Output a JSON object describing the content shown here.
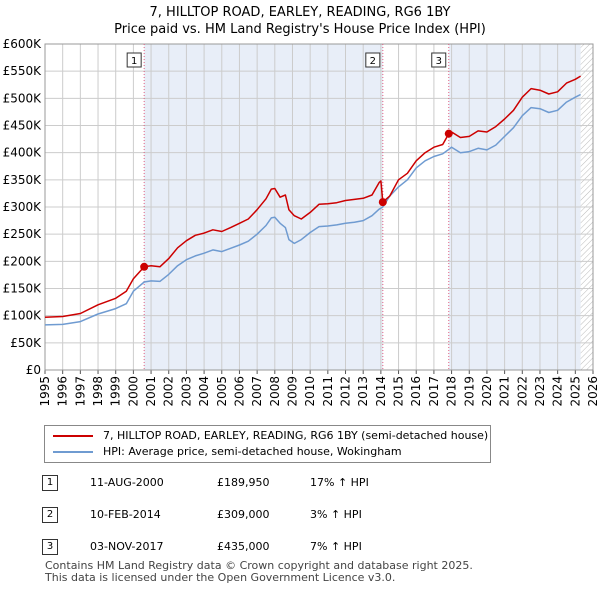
{
  "chart_data": {
    "type": "line",
    "title": "7, HILLTOP ROAD, EARLEY, READING, RG6 1BY",
    "subtitle": "Price paid vs. HM Land Registry's House Price Index (HPI)",
    "ylim": [
      0,
      600000
    ],
    "xlim": [
      1995,
      2026
    ],
    "y_ticks": [
      0,
      50000,
      100000,
      150000,
      200000,
      250000,
      300000,
      350000,
      400000,
      450000,
      500000,
      550000,
      600000
    ],
    "y_tick_labels": [
      "£0",
      "£50K",
      "£100K",
      "£150K",
      "£200K",
      "£250K",
      "£300K",
      "£350K",
      "£400K",
      "£450K",
      "£500K",
      "£550K",
      "£600K"
    ],
    "x_ticks": [
      1995,
      1996,
      1997,
      1998,
      1999,
      2000,
      2001,
      2002,
      2003,
      2004,
      2005,
      2006,
      2007,
      2008,
      2009,
      2010,
      2011,
      2012,
      2013,
      2014,
      2015,
      2016,
      2017,
      2018,
      2019,
      2020,
      2021,
      2022,
      2023,
      2024,
      2025,
      2026
    ],
    "x_tick_labels": [
      "1995",
      "1996",
      "1997",
      "1998",
      "1999",
      "2000",
      "2001",
      "2002",
      "2003",
      "2004",
      "2005",
      "2006",
      "2007",
      "2008",
      "2009",
      "2010",
      "2011",
      "2012",
      "2013",
      "2014",
      "2015",
      "2016",
      "2017",
      "2018",
      "2019",
      "2020",
      "2021",
      "2022",
      "2023",
      "2024",
      "2025",
      "2026"
    ],
    "grid": true,
    "shaded_periods": [
      [
        2000.61,
        2014.11
      ],
      [
        2017.84,
        2025.3
      ]
    ],
    "hatched_after": 2025.3,
    "series": [
      {
        "name": "7, HILLTOP ROAD, EARLEY, READING, RG6 1BY (semi-detached house)",
        "color": "#cc0000",
        "points": [
          [
            1995.0,
            97000
          ],
          [
            1996.0,
            98500
          ],
          [
            1997.0,
            104000
          ],
          [
            1998.0,
            120000
          ],
          [
            1999.0,
            132000
          ],
          [
            1999.6,
            145000
          ],
          [
            2000.0,
            168000
          ],
          [
            2000.61,
            189950
          ],
          [
            2001.0,
            192000
          ],
          [
            2001.5,
            190000
          ],
          [
            2002.0,
            205000
          ],
          [
            2002.5,
            225000
          ],
          [
            2003.0,
            238000
          ],
          [
            2003.5,
            248000
          ],
          [
            2004.0,
            252000
          ],
          [
            2004.5,
            258000
          ],
          [
            2005.0,
            255000
          ],
          [
            2005.5,
            262000
          ],
          [
            2006.0,
            270000
          ],
          [
            2006.5,
            278000
          ],
          [
            2007.0,
            295000
          ],
          [
            2007.5,
            315000
          ],
          [
            2007.8,
            333000
          ],
          [
            2008.0,
            334000
          ],
          [
            2008.3,
            318000
          ],
          [
            2008.6,
            322000
          ],
          [
            2008.8,
            295000
          ],
          [
            2009.1,
            284000
          ],
          [
            2009.5,
            278000
          ],
          [
            2010.0,
            290000
          ],
          [
            2010.5,
            305000
          ],
          [
            2011.0,
            306000
          ],
          [
            2011.5,
            308000
          ],
          [
            2012.0,
            312000
          ],
          [
            2012.5,
            314000
          ],
          [
            2013.0,
            316000
          ],
          [
            2013.5,
            322000
          ],
          [
            2013.9,
            345000
          ],
          [
            2014.0,
            348000
          ],
          [
            2014.11,
            309000
          ],
          [
            2014.5,
            320000
          ],
          [
            2015.0,
            350000
          ],
          [
            2015.5,
            362000
          ],
          [
            2016.0,
            385000
          ],
          [
            2016.5,
            400000
          ],
          [
            2017.0,
            410000
          ],
          [
            2017.5,
            415000
          ],
          [
            2017.84,
            435000
          ],
          [
            2018.0,
            438000
          ],
          [
            2018.5,
            428000
          ],
          [
            2019.0,
            430000
          ],
          [
            2019.5,
            440000
          ],
          [
            2020.0,
            438000
          ],
          [
            2020.5,
            448000
          ],
          [
            2021.0,
            462000
          ],
          [
            2021.5,
            478000
          ],
          [
            2022.0,
            502000
          ],
          [
            2022.5,
            518000
          ],
          [
            2023.0,
            515000
          ],
          [
            2023.5,
            508000
          ],
          [
            2024.0,
            512000
          ],
          [
            2024.5,
            528000
          ],
          [
            2025.0,
            535000
          ],
          [
            2025.3,
            541000
          ]
        ]
      },
      {
        "name": "HPI: Average price, semi-detached house, Wokingham",
        "color": "#6f9bd1",
        "points": [
          [
            1995.0,
            83000
          ],
          [
            1996.0,
            84000
          ],
          [
            1997.0,
            89000
          ],
          [
            1998.0,
            103000
          ],
          [
            1999.0,
            113000
          ],
          [
            1999.6,
            122000
          ],
          [
            2000.0,
            145000
          ],
          [
            2000.61,
            162000
          ],
          [
            2001.0,
            164000
          ],
          [
            2001.5,
            163000
          ],
          [
            2002.0,
            176000
          ],
          [
            2002.5,
            192000
          ],
          [
            2003.0,
            203000
          ],
          [
            2003.5,
            210000
          ],
          [
            2004.0,
            215000
          ],
          [
            2004.5,
            221000
          ],
          [
            2005.0,
            218000
          ],
          [
            2005.5,
            224000
          ],
          [
            2006.0,
            230000
          ],
          [
            2006.5,
            237000
          ],
          [
            2007.0,
            250000
          ],
          [
            2007.5,
            266000
          ],
          [
            2007.8,
            280000
          ],
          [
            2008.0,
            281000
          ],
          [
            2008.3,
            270000
          ],
          [
            2008.6,
            262000
          ],
          [
            2008.8,
            240000
          ],
          [
            2009.1,
            233000
          ],
          [
            2009.5,
            240000
          ],
          [
            2010.0,
            253000
          ],
          [
            2010.5,
            264000
          ],
          [
            2011.0,
            265000
          ],
          [
            2011.5,
            267000
          ],
          [
            2012.0,
            270000
          ],
          [
            2012.5,
            272000
          ],
          [
            2013.0,
            275000
          ],
          [
            2013.5,
            284000
          ],
          [
            2013.9,
            296000
          ],
          [
            2014.0,
            298000
          ],
          [
            2014.11,
            300000
          ],
          [
            2014.5,
            320000
          ],
          [
            2015.0,
            337000
          ],
          [
            2015.5,
            350000
          ],
          [
            2016.0,
            372000
          ],
          [
            2016.5,
            385000
          ],
          [
            2017.0,
            393000
          ],
          [
            2017.5,
            398000
          ],
          [
            2017.84,
            406000
          ],
          [
            2018.0,
            410000
          ],
          [
            2018.5,
            400000
          ],
          [
            2019.0,
            402000
          ],
          [
            2019.5,
            408000
          ],
          [
            2020.0,
            405000
          ],
          [
            2020.5,
            414000
          ],
          [
            2021.0,
            430000
          ],
          [
            2021.5,
            446000
          ],
          [
            2022.0,
            468000
          ],
          [
            2022.5,
            483000
          ],
          [
            2023.0,
            481000
          ],
          [
            2023.5,
            474000
          ],
          [
            2024.0,
            478000
          ],
          [
            2024.5,
            493000
          ],
          [
            2025.0,
            502000
          ],
          [
            2025.3,
            507000
          ]
        ]
      }
    ],
    "sale_markers": [
      {
        "label": "1",
        "x": 2000.61,
        "y": 189950
      },
      {
        "label": "2",
        "x": 2014.11,
        "y": 309000
      },
      {
        "label": "3",
        "x": 2017.84,
        "y": 435000
      }
    ]
  },
  "legend": {
    "items": [
      {
        "label": "7, HILLTOP ROAD, EARLEY, READING, RG6 1BY (semi-detached house)",
        "color": "#cc0000"
      },
      {
        "label": "HPI: Average price, semi-detached house, Wokingham",
        "color": "#6f9bd1"
      }
    ]
  },
  "sales": [
    {
      "num": "1",
      "date": "11-AUG-2000",
      "price": "£189,950",
      "hpi": "17% ↑ HPI"
    },
    {
      "num": "2",
      "date": "10-FEB-2014",
      "price": "£309,000",
      "hpi": "3% ↑ HPI"
    },
    {
      "num": "3",
      "date": "03-NOV-2017",
      "price": "£435,000",
      "hpi": "7% ↑ HPI"
    }
  ],
  "footer": {
    "line1": "Contains HM Land Registry data © Crown copyright and database right 2025.",
    "line2": "This data is licensed under the Open Government Licence v3.0."
  }
}
